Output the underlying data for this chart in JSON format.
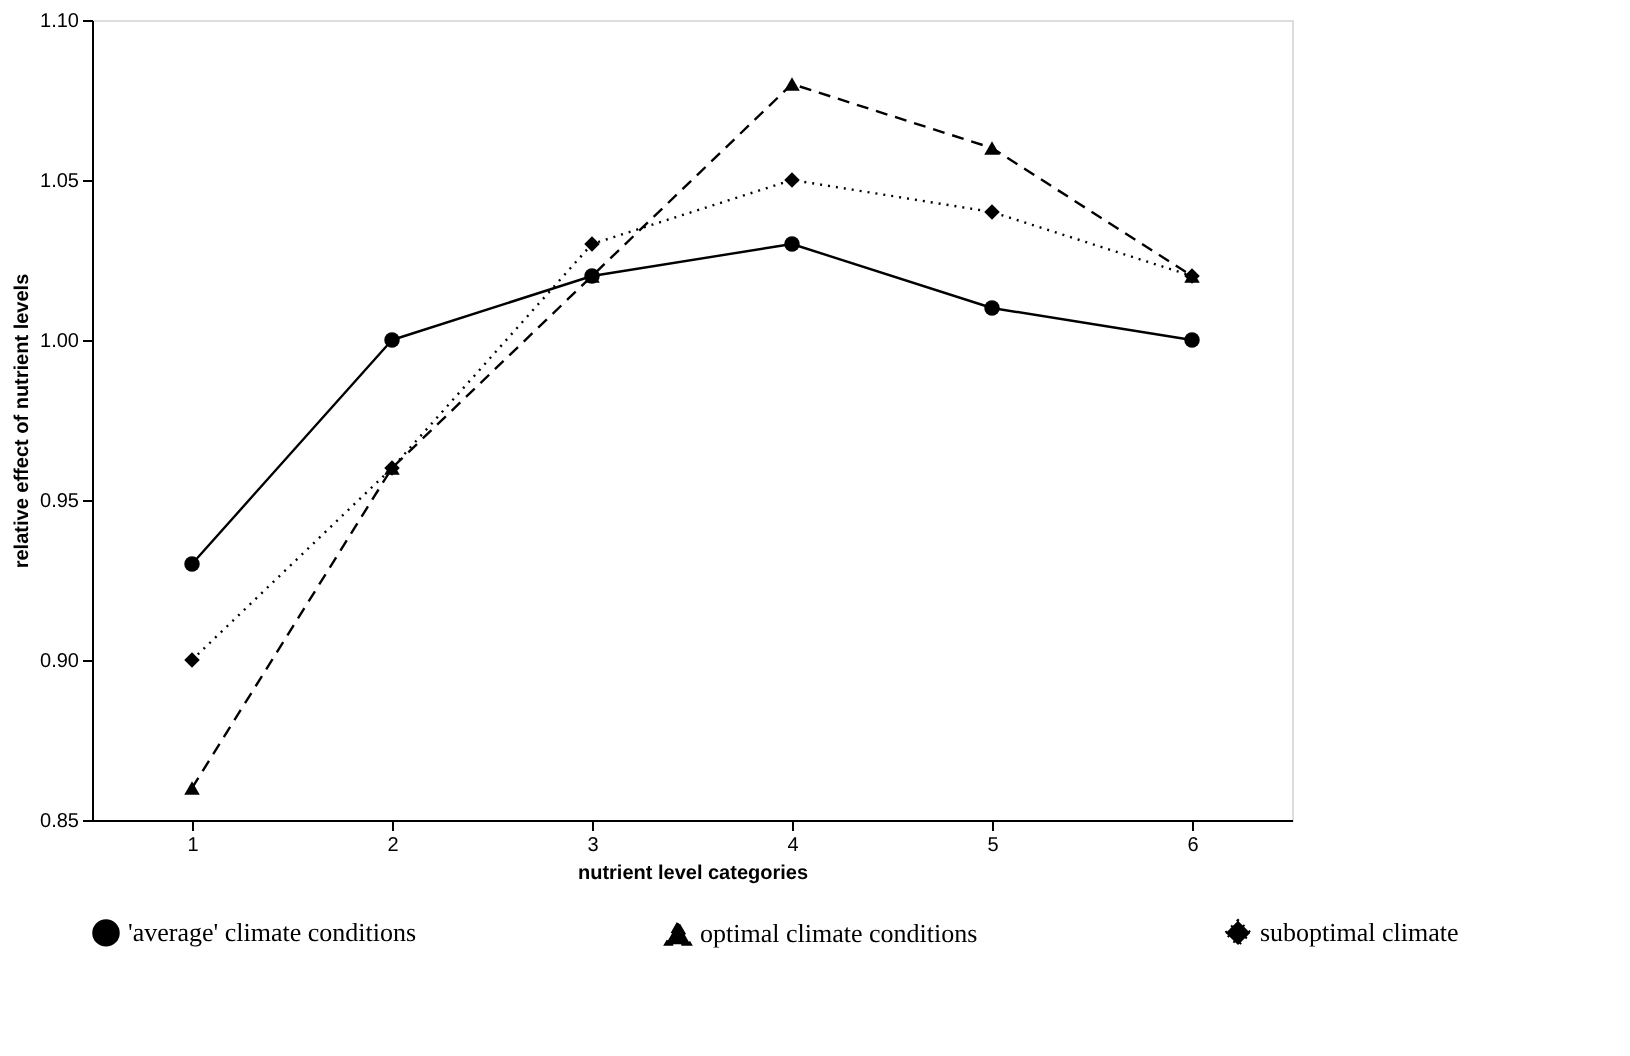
{
  "chart_data": {
    "type": "line",
    "xlabel": "nutrient level categories",
    "ylabel": "relative effect of nutrient levels",
    "categories": [
      "1",
      "2",
      "3",
      "4",
      "5",
      "6"
    ],
    "series": [
      {
        "name": "'average' climate conditions",
        "color": "#000000",
        "values": [
          0.93,
          1.0,
          1.02,
          1.03,
          1.01,
          1.0
        ],
        "marker": "circle",
        "line_style": "solid"
      },
      {
        "name": "optimal climate conditions",
        "color": "#000000",
        "values": [
          0.86,
          0.96,
          1.02,
          1.08,
          1.06,
          1.02
        ],
        "marker": "triangle",
        "line_style": "dashed"
      },
      {
        "name": "suboptimal climate",
        "color": "#000000",
        "values": [
          0.9,
          0.96,
          1.03,
          1.05,
          1.04,
          1.02
        ],
        "marker": "diamond",
        "line_style": "dotted"
      }
    ],
    "ylim": [
      0.85,
      1.1
    ],
    "yticks": [
      {
        "value": 0.85,
        "label": "0.85"
      },
      {
        "value": 0.9,
        "label": "0.90"
      },
      {
        "value": 0.95,
        "label": "0.95"
      },
      {
        "value": 1.0,
        "label": "1.00"
      },
      {
        "value": 1.05,
        "label": "1.05"
      },
      {
        "value": 1.1,
        "label": "1.10"
      }
    ],
    "grid": false,
    "legend": "bottom"
  }
}
